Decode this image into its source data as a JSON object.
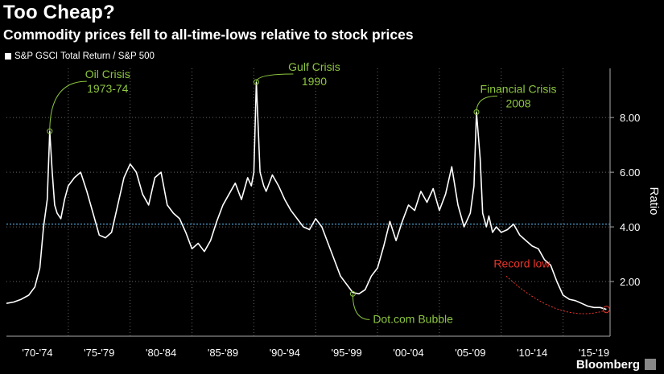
{
  "title": "Too Cheap?",
  "subtitle": "Commodity prices fell to all-time-lows relative to stock prices",
  "brand": "Bloomberg",
  "colors": {
    "background": "#000000",
    "line": "#ffffff",
    "annotation": "#8dc63f",
    "reference": "#58b5e8",
    "record_low": "#e8352a",
    "grid": "#666666"
  },
  "chart_data": {
    "type": "line",
    "legend": [
      "S&P GSCI Total Return / S&P 500"
    ],
    "ylabel": "Ratio",
    "ylim": [
      0,
      9.8
    ],
    "yticks": [
      2,
      4,
      6,
      8
    ],
    "ytick_labels": [
      "2.00",
      "4.00",
      "6.00",
      "8.00"
    ],
    "xlim": [
      1970.0,
      2018.8
    ],
    "x_period_labels": [
      "'70-'74",
      "'75-'79",
      "'80-'84",
      "'85-'89",
      "'90-'94",
      "'95-'99",
      "'00-'04",
      "'05-'09",
      "'10-'14",
      "'15-'19"
    ],
    "grid": true,
    "reference_line": 4.1,
    "series": [
      {
        "name": "S&P GSCI Total Return / S&P 500",
        "x": [
          1970.0,
          1970.6,
          1971.2,
          1971.8,
          1972.3,
          1972.7,
          1973.0,
          1973.3,
          1973.5,
          1973.7,
          1973.9,
          1974.1,
          1974.4,
          1974.7,
          1975.0,
          1975.5,
          1976.0,
          1976.5,
          1977.0,
          1977.5,
          1978.0,
          1978.5,
          1979.0,
          1979.5,
          1980.0,
          1980.5,
          1981.0,
          1981.5,
          1982.0,
          1982.5,
          1983.0,
          1983.5,
          1984.0,
          1984.5,
          1985.0,
          1985.5,
          1986.0,
          1986.5,
          1987.0,
          1987.5,
          1988.0,
          1988.5,
          1989.0,
          1989.5,
          1989.8,
          1990.0,
          1990.2,
          1990.5,
          1990.8,
          1991.0,
          1991.5,
          1992.0,
          1992.5,
          1993.0,
          1993.5,
          1994.0,
          1994.5,
          1995.0,
          1995.5,
          1996.0,
          1996.5,
          1997.0,
          1997.5,
          1998.0,
          1998.5,
          1999.0,
          1999.5,
          2000.0,
          2000.5,
          2001.0,
          2001.5,
          2002.0,
          2002.5,
          2003.0,
          2003.5,
          2004.0,
          2004.5,
          2005.0,
          2005.5,
          2006.0,
          2006.5,
          2007.0,
          2007.5,
          2007.8,
          2008.0,
          2008.3,
          2008.5,
          2008.8,
          2009.0,
          2009.3,
          2009.6,
          2010.0,
          2010.5,
          2011.0,
          2011.5,
          2012.0,
          2012.5,
          2013.0,
          2013.5,
          2014.0,
          2014.5,
          2015.0,
          2015.5,
          2016.0,
          2016.5,
          2017.0,
          2017.5,
          2018.0,
          2018.5
        ],
        "values": [
          1.2,
          1.25,
          1.35,
          1.5,
          1.8,
          2.5,
          4.0,
          5.0,
          7.5,
          6.0,
          4.8,
          4.5,
          4.3,
          5.0,
          5.5,
          5.8,
          6.0,
          5.3,
          4.5,
          3.7,
          3.6,
          3.8,
          4.8,
          5.8,
          6.3,
          6.0,
          5.2,
          4.8,
          5.8,
          6.0,
          4.8,
          4.5,
          4.3,
          3.8,
          3.2,
          3.4,
          3.1,
          3.5,
          4.2,
          4.8,
          5.2,
          5.6,
          5.0,
          5.8,
          5.5,
          6.0,
          9.3,
          6.0,
          5.5,
          5.3,
          5.9,
          5.5,
          5.0,
          4.6,
          4.3,
          4.0,
          3.9,
          4.3,
          4.0,
          3.4,
          2.8,
          2.2,
          1.9,
          1.6,
          1.55,
          1.7,
          2.2,
          2.5,
          3.3,
          4.2,
          3.5,
          4.2,
          4.8,
          4.6,
          5.3,
          4.9,
          5.4,
          4.6,
          5.2,
          6.2,
          4.8,
          4.0,
          4.5,
          5.5,
          8.2,
          6.5,
          4.5,
          4.0,
          4.4,
          3.8,
          4.0,
          3.8,
          3.9,
          4.1,
          3.7,
          3.5,
          3.3,
          3.2,
          2.8,
          2.6,
          2.0,
          1.5,
          1.35,
          1.3,
          1.2,
          1.1,
          1.05,
          1.05,
          0.98
        ]
      }
    ],
    "annotations": [
      {
        "lines": [
          "Oil Crisis",
          "1973-74"
        ],
        "x": 1973.5,
        "y": 7.5
      },
      {
        "lines": [
          "Gulf Crisis",
          "1990"
        ],
        "x": 1990.2,
        "y": 9.3
      },
      {
        "lines": [
          "Financial Crisis",
          "2008"
        ],
        "x": 2008.0,
        "y": 8.2
      },
      {
        "lines": [
          "Dot.com Bubble"
        ],
        "x": 1998.0,
        "y": 1.55
      }
    ],
    "record_low": {
      "label": "Record low",
      "x": 2018.5,
      "y": 0.98
    }
  }
}
